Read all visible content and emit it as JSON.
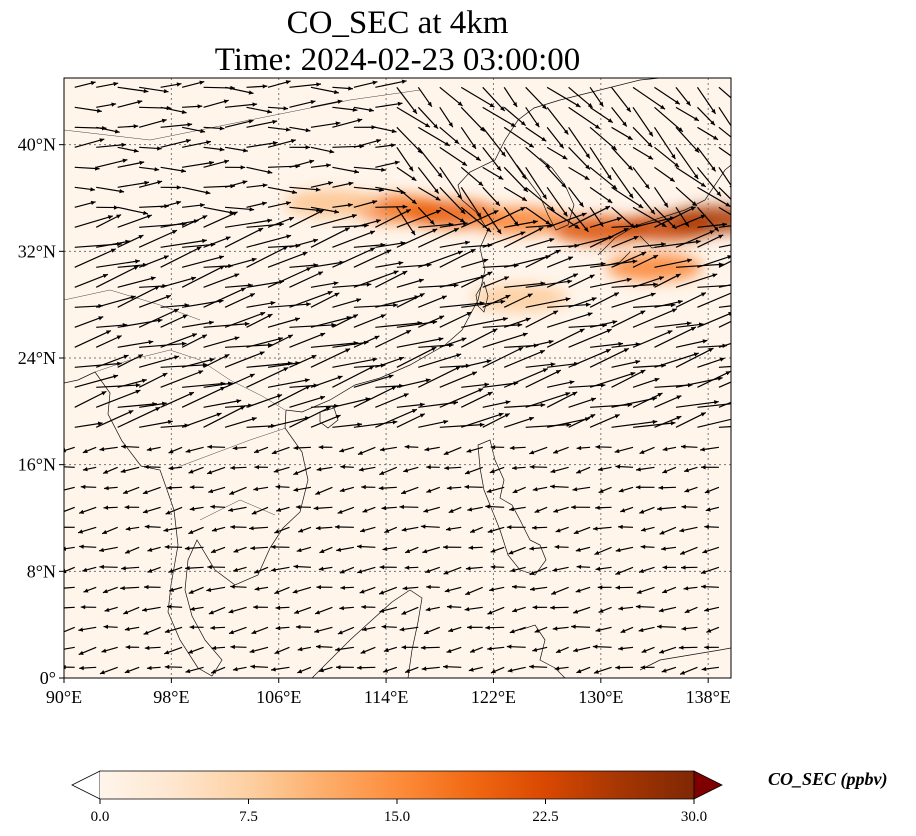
{
  "title": {
    "line1": "CO_SEC at 4km",
    "line2": "Time: 2024-02-23 03:00:00"
  },
  "map": {
    "extent": {
      "lon_min": 90,
      "lon_max": 139.7,
      "lat_min": 0,
      "lat_max": 45
    },
    "x_ticks": [
      {
        "value": 90,
        "label": "90°E"
      },
      {
        "value": 98,
        "label": "98°E"
      },
      {
        "value": 106,
        "label": "106°E"
      },
      {
        "value": 114,
        "label": "114°E"
      },
      {
        "value": 122,
        "label": "122°E"
      },
      {
        "value": 130,
        "label": "130°E"
      },
      {
        "value": 138,
        "label": "138°E"
      }
    ],
    "y_ticks": [
      {
        "value": 0,
        "label": "0°"
      },
      {
        "value": 8,
        "label": "8°N"
      },
      {
        "value": 16,
        "label": "16°N"
      },
      {
        "value": 24,
        "label": "24°N"
      },
      {
        "value": 32,
        "label": "32°N"
      },
      {
        "value": 40,
        "label": "40°N"
      }
    ],
    "gridlines": true,
    "background_color": "#fff5eb",
    "co_plume": [
      {
        "lon": 115,
        "lat": 35.2,
        "value": 18
      },
      {
        "lon": 119,
        "lat": 34.8,
        "value": 20
      },
      {
        "lon": 124,
        "lat": 34.3,
        "value": 16
      },
      {
        "lon": 130,
        "lat": 33.6,
        "value": 22
      },
      {
        "lon": 135,
        "lat": 33.8,
        "value": 24
      },
      {
        "lon": 138.5,
        "lat": 34.4,
        "value": 26
      },
      {
        "lon": 134,
        "lat": 30.8,
        "value": 16
      },
      {
        "lon": 110,
        "lat": 35.6,
        "value": 9
      },
      {
        "lon": 124,
        "lat": 28.5,
        "value": 8
      }
    ],
    "wind_regions": [
      {
        "lat_min": 34,
        "lat_max": 45,
        "lon_min": 90,
        "lon_max": 114,
        "u": 1.0,
        "v": 0.05,
        "speed": 1.1
      },
      {
        "lat_min": 34,
        "lat_max": 45,
        "lon_min": 114,
        "lon_max": 140,
        "u": 0.7,
        "v": -0.7,
        "speed": 1.4
      },
      {
        "lat_min": 18,
        "lat_max": 34,
        "lon_min": 90,
        "lon_max": 140,
        "u": 1.0,
        "v": 0.3,
        "speed": 1.8
      },
      {
        "lat_min": 0,
        "lat_max": 18,
        "lon_min": 90,
        "lon_max": 140,
        "u": -1.0,
        "v": -0.2,
        "speed": 0.5
      }
    ],
    "wind_arrow_color": "#000000"
  },
  "colorbar": {
    "min": 0.0,
    "max": 30.0,
    "colors": [
      "#fff5eb",
      "#fee6ce",
      "#fdd0a2",
      "#fdae6b",
      "#fd8d3c",
      "#f16913",
      "#d94801",
      "#a63603",
      "#7f2704"
    ],
    "under_color": "#ffffff",
    "over_color": "#7f0000",
    "ticks": [
      {
        "value": 0.0,
        "label": "0.0"
      },
      {
        "value": 7.5,
        "label": "7.5"
      },
      {
        "value": 15.0,
        "label": "15.0"
      },
      {
        "value": 22.5,
        "label": "22.5"
      },
      {
        "value": 30.0,
        "label": "30.0"
      }
    ],
    "label": "CO_SEC (ppbv)"
  }
}
